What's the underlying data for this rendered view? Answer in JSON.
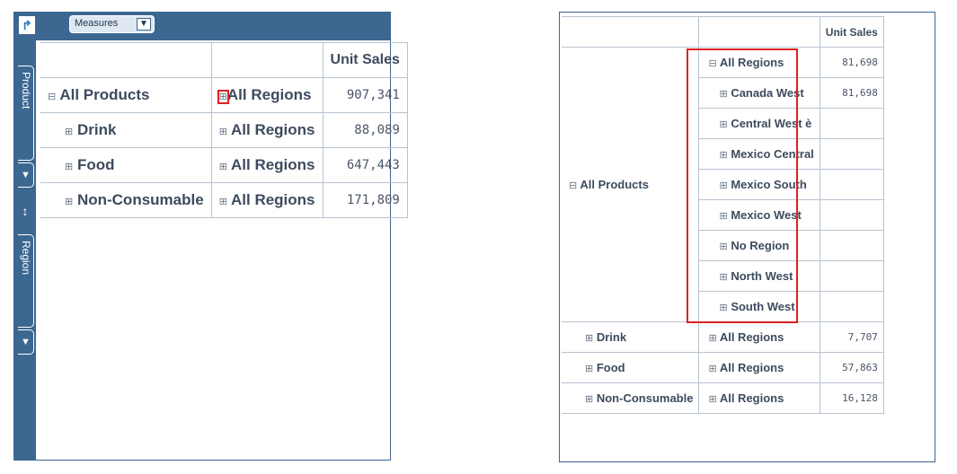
{
  "left": {
    "measures_label": "Measures",
    "filter_icon": "▼",
    "sidebar": {
      "product_tab": "Product",
      "region_tab": "Region",
      "swap_icon": "↕"
    },
    "header": {
      "measure": "Unit Sales"
    },
    "rows": [
      {
        "product_toggle": "⊟",
        "product": "All Products",
        "region_toggle": "⊞",
        "region": "All Regions",
        "value": "907,341"
      },
      {
        "product_toggle": "⊞",
        "product": "Drink",
        "region_toggle": "⊞",
        "region": "All Regions",
        "value": "88,089"
      },
      {
        "product_toggle": "⊞",
        "product": "Food",
        "region_toggle": "⊞",
        "region": "All Regions",
        "value": "647,443"
      },
      {
        "product_toggle": "⊞",
        "product": "Non-Consumable",
        "region_toggle": "⊞",
        "region": "All Regions",
        "value": "171,809"
      }
    ]
  },
  "right": {
    "header": {
      "measure": "Unit Sales"
    },
    "all_products": {
      "toggle": "⊟",
      "label": "All Products"
    },
    "region_rows": [
      {
        "toggle": "⊟",
        "label": "All Regions",
        "value": "81,698"
      },
      {
        "toggle": "⊞",
        "label": "Canada West",
        "value": "81,698"
      },
      {
        "toggle": "⊞",
        "label": "Central West è",
        "value": ""
      },
      {
        "toggle": "⊞",
        "label": "Mexico Central",
        "value": ""
      },
      {
        "toggle": "⊞",
        "label": "Mexico South",
        "value": ""
      },
      {
        "toggle": "⊞",
        "label": "Mexico West",
        "value": ""
      },
      {
        "toggle": "⊞",
        "label": "No Region",
        "value": ""
      },
      {
        "toggle": "⊞",
        "label": "North West",
        "value": ""
      },
      {
        "toggle": "⊞",
        "label": "South West",
        "value": ""
      }
    ],
    "product_rows": [
      {
        "product_toggle": "⊞",
        "product": "Drink",
        "region_toggle": "⊞",
        "region": "All Regions",
        "value": "7,707"
      },
      {
        "product_toggle": "⊞",
        "product": "Food",
        "region_toggle": "⊞",
        "region": "All Regions",
        "value": "57,863"
      },
      {
        "product_toggle": "⊞",
        "product": "Non-Consumable",
        "region_toggle": "⊞",
        "region": "All Regions",
        "value": "16,128"
      }
    ]
  },
  "colors": {
    "toolbar": "#3c6791",
    "highlight": "#e02020",
    "grid": "#b7c3d0"
  }
}
